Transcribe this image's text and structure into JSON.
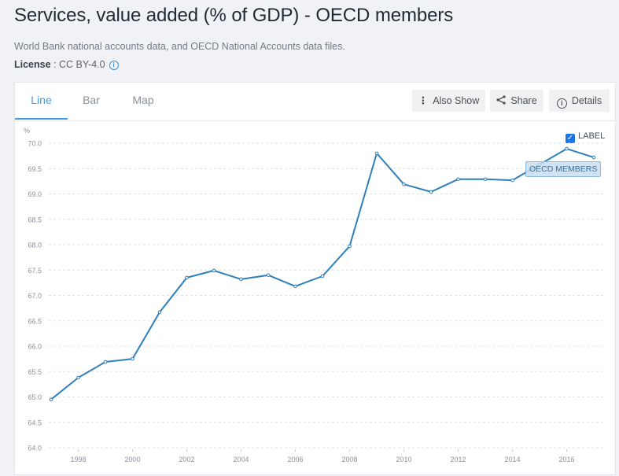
{
  "header": {
    "title": "Services, value added (% of GDP) - OECD members",
    "source": "World Bank national accounts data, and OECD National Accounts data files.",
    "license_label": "License",
    "license_value": " : CC BY-4.0",
    "license_info_icon": "info-circle-icon"
  },
  "tabs": [
    {
      "label": "Line",
      "active": true
    },
    {
      "label": "Bar",
      "active": false
    },
    {
      "label": "Map",
      "active": false
    }
  ],
  "toolbar": {
    "also_show": {
      "label": "Also Show",
      "icon": "vertical-dots-icon"
    },
    "share": {
      "label": "Share",
      "icon": "share-icon"
    },
    "details": {
      "label": "Details",
      "icon": "info-circle-icon"
    }
  },
  "label_toggle": {
    "label": "LABEL",
    "checked": true
  },
  "colors": {
    "accent": "#3d9be9",
    "line": "#2f7fba",
    "checkbox": "#1a73e8"
  },
  "chart_data": {
    "type": "line",
    "title": "Services, value added (% of GDP) - OECD members",
    "xlabel": "",
    "ylabel": "%",
    "ylim": [
      64.0,
      70.0
    ],
    "yticks": [
      "64.0",
      "64.5",
      "65.0",
      "65.5",
      "66.0",
      "66.5",
      "67.0",
      "67.5",
      "68.0",
      "68.5",
      "69.0",
      "69.5",
      "70.0"
    ],
    "xticks": [
      "1998",
      "2000",
      "2002",
      "2004",
      "2006",
      "2008",
      "2010",
      "2012",
      "2014",
      "2016"
    ],
    "xlim": [
      1997,
      2017
    ],
    "grid": true,
    "legend": "none",
    "series": [
      {
        "name": "OECD MEMBERS",
        "x": [
          1997,
          1998,
          1999,
          2000,
          2001,
          2002,
          2003,
          2004,
          2005,
          2006,
          2007,
          2008,
          2009,
          2010,
          2011,
          2012,
          2013,
          2014,
          2015,
          2016,
          2017
        ],
        "values": [
          64.95,
          65.38,
          65.69,
          65.75,
          66.67,
          67.35,
          67.49,
          67.32,
          67.4,
          67.18,
          67.38,
          67.97,
          69.8,
          69.19,
          69.04,
          69.29,
          69.29,
          69.27,
          69.58,
          69.89,
          69.72
        ]
      }
    ]
  }
}
